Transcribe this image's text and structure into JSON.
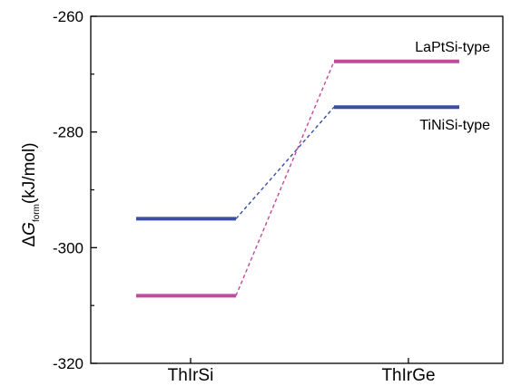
{
  "chart_data": {
    "type": "line",
    "categories": [
      "ThIrSi",
      "ThIrGe"
    ],
    "series": [
      {
        "name": "TiNiSi-type",
        "values": [
          -295,
          -275.7
        ],
        "color": "#3a4fa3"
      },
      {
        "name": "LaPtSi-type",
        "values": [
          -308.3,
          -267.8
        ],
        "color": "#c24a9e"
      }
    ],
    "ylabel": {
      "delta": "Δ",
      "symbol": "G",
      "subscript": "form",
      "unit": "(kJ/mol)"
    },
    "ylim": [
      -320,
      -260
    ],
    "yticks": [
      "-260",
      "-280",
      "-300",
      "-320"
    ],
    "minor_ticks": true,
    "grid": false,
    "connector_style": "dashed"
  }
}
